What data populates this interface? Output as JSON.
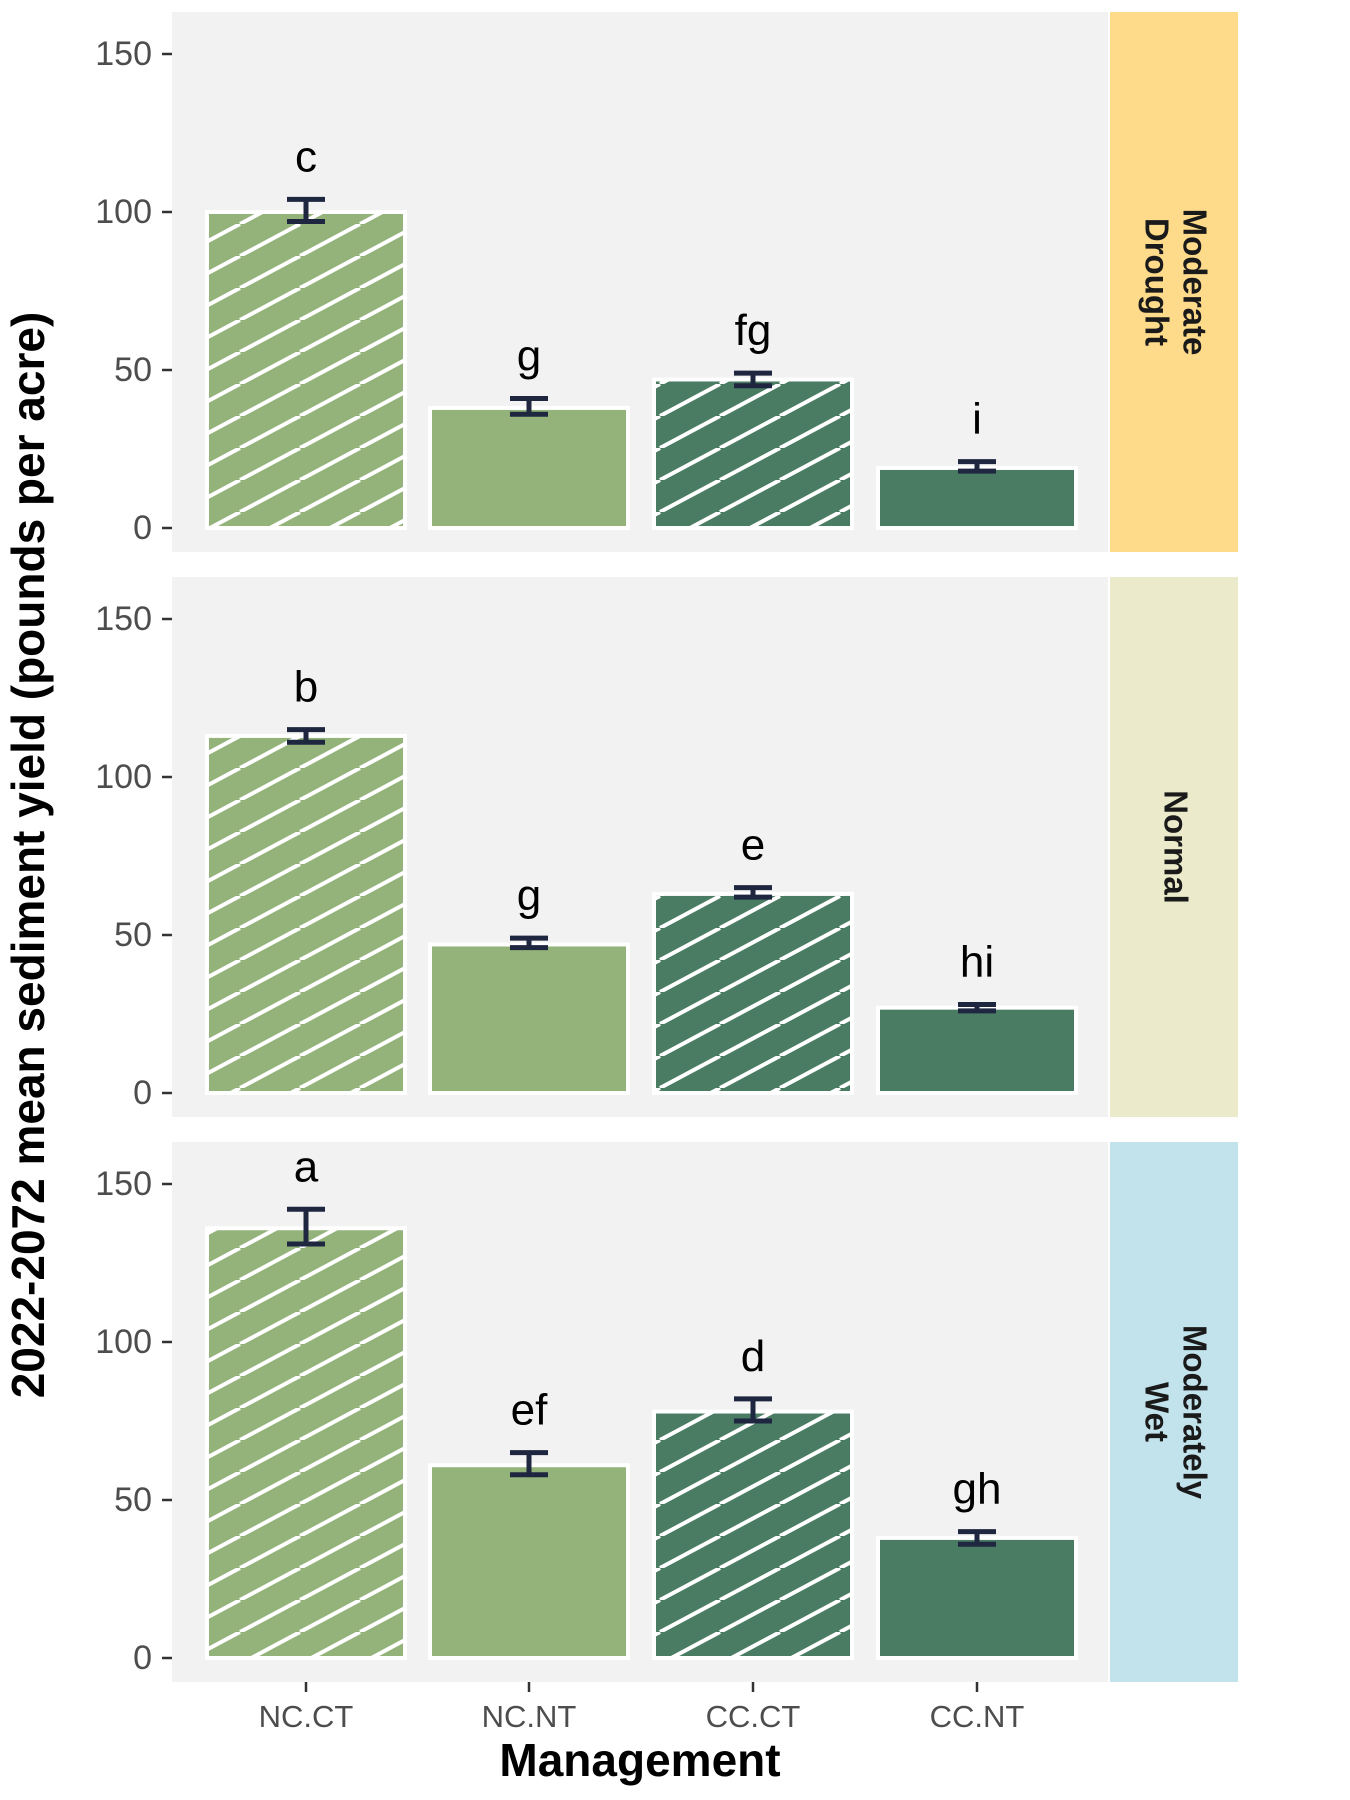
{
  "chart_data": {
    "type": "bar",
    "xlabel": "Management",
    "ylabel": "2022-2072 mean sediment yield (pounds per acre)",
    "categories": [
      "NC.CT",
      "NC.NT",
      "CC.CT",
      "CC.NT"
    ],
    "ylim": [
      0,
      160
    ],
    "yticks": [
      0,
      50,
      100,
      150
    ],
    "grid": false,
    "hatched_categories": [
      "NC.CT",
      "CC.CT"
    ],
    "bar_colors": {
      "NC.CT": "#93b37a",
      "NC.NT": "#93b37a",
      "CC.CT": "#4a7c63",
      "CC.NT": "#4a7c63"
    },
    "panels": [
      {
        "label": "Moderate Drought",
        "label_lines": [
          "Moderate",
          "Drought"
        ],
        "strip_color": "#fedb8b",
        "values": [
          100,
          38,
          47,
          19
        ],
        "error_low": [
          97,
          36,
          45,
          18
        ],
        "error_high": [
          104,
          41,
          49,
          21
        ],
        "letters": [
          "c",
          "g",
          "fg",
          "i"
        ]
      },
      {
        "label": "Normal",
        "label_lines": [
          "Normal"
        ],
        "strip_color": "#ebebcb",
        "values": [
          113,
          47,
          63,
          27
        ],
        "error_low": [
          111,
          46,
          62,
          26
        ],
        "error_high": [
          115,
          49,
          65,
          28
        ],
        "letters": [
          "b",
          "g",
          "e",
          "hi"
        ]
      },
      {
        "label": "Moderately Wet",
        "label_lines": [
          "Moderately",
          "Wet"
        ],
        "strip_color": "#c2e3ec",
        "values": [
          136,
          61,
          78,
          38
        ],
        "error_low": [
          131,
          58,
          75,
          36
        ],
        "error_high": [
          142,
          65,
          82,
          40
        ],
        "letters": [
          "a",
          "ef",
          "d",
          "gh"
        ]
      }
    ]
  }
}
